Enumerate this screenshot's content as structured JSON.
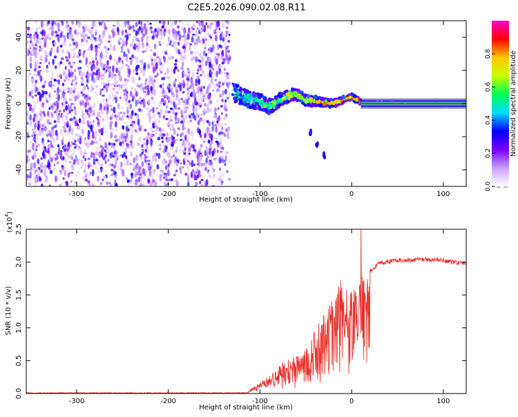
{
  "title": "C2E5.2026.090.02.08.R11",
  "chart_data": [
    {
      "type": "heatmap",
      "name": "spectrogram",
      "xlabel": "Height of straight line (km)",
      "ylabel": "Frequency (Hz)",
      "xlim": [
        -355,
        125
      ],
      "ylim": [
        -50,
        50
      ],
      "xticks": [
        -300,
        -200,
        -100,
        0,
        100
      ],
      "yticks": [
        -40,
        -20,
        0,
        20,
        40
      ],
      "noise_region_km": [
        -355,
        -133
      ],
      "signal_track": [
        {
          "x": -130,
          "f": 7
        },
        {
          "x": -115,
          "f": 3
        },
        {
          "x": -100,
          "f": 1
        },
        {
          "x": -90,
          "f": -2
        },
        {
          "x": -75,
          "f": 3
        },
        {
          "x": -62,
          "f": 6
        },
        {
          "x": -50,
          "f": 2
        },
        {
          "x": -35,
          "f": 1
        },
        {
          "x": -20,
          "f": 0
        },
        {
          "x": -10,
          "f": 2
        },
        {
          "x": 0,
          "f": 4
        },
        {
          "x": 10,
          "f": 1
        },
        {
          "x": 125,
          "f": 0
        }
      ],
      "side_branch": [
        {
          "x": -45,
          "f": -18
        },
        {
          "x": -38,
          "f": -24
        },
        {
          "x": -30,
          "f": -31
        }
      ],
      "colorbar": {
        "label": "Normalized spectral amplitude",
        "range": [
          0,
          1
        ],
        "ticks": [
          0.0,
          0.2,
          0.4,
          0.6,
          0.8
        ],
        "tick_labels": [
          "0.0",
          "0.2",
          "0.4",
          "0.6",
          "0.8"
        ],
        "colors": [
          "#ffffff",
          "#c8a0ff",
          "#7800ff",
          "#0000ff",
          "#00dcff",
          "#00ff50",
          "#c8ff00",
          "#ffc800",
          "#ff0000",
          "#ff00c8"
        ]
      }
    },
    {
      "type": "line",
      "name": "snr",
      "xlabel": "Height of straight line (km)",
      "ylabel": "SNR (10 * v/v)",
      "scale_label": "(x10",
      "scale_exp": "4",
      "scale_close": ")",
      "xlim": [
        -355,
        125
      ],
      "ylim": [
        0,
        2.5
      ],
      "xticks": [
        -300,
        -200,
        -100,
        0,
        100
      ],
      "yticks": [
        0.0,
        0.5,
        1.0,
        1.5,
        2.0,
        2.5
      ],
      "ytick_labels": [
        "0.0",
        "0.5",
        "1.0",
        "1.5",
        "2.0",
        "2.5"
      ],
      "color": "#e8302a",
      "envelope": [
        {
          "x": -355,
          "y": 0.0
        },
        {
          "x": -115,
          "y": 0.02
        },
        {
          "x": -105,
          "y": 0.12
        },
        {
          "x": -95,
          "y": 0.25
        },
        {
          "x": -80,
          "y": 0.38
        },
        {
          "x": -65,
          "y": 0.48
        },
        {
          "x": -50,
          "y": 0.6
        },
        {
          "x": -40,
          "y": 0.85
        },
        {
          "x": -30,
          "y": 1.05
        },
        {
          "x": -20,
          "y": 1.3
        },
        {
          "x": -10,
          "y": 1.55
        },
        {
          "x": 0,
          "y": 1.35
        },
        {
          "x": 10,
          "y": 1.55
        },
        {
          "x": 20,
          "y": 1.85
        },
        {
          "x": 30,
          "y": 1.98
        },
        {
          "x": 50,
          "y": 2.03
        },
        {
          "x": 75,
          "y": 2.04
        },
        {
          "x": 95,
          "y": 2.04
        },
        {
          "x": 110,
          "y": 2.0
        },
        {
          "x": 125,
          "y": 1.98
        }
      ],
      "spike": {
        "x": 10,
        "y": 2.5
      }
    }
  ]
}
